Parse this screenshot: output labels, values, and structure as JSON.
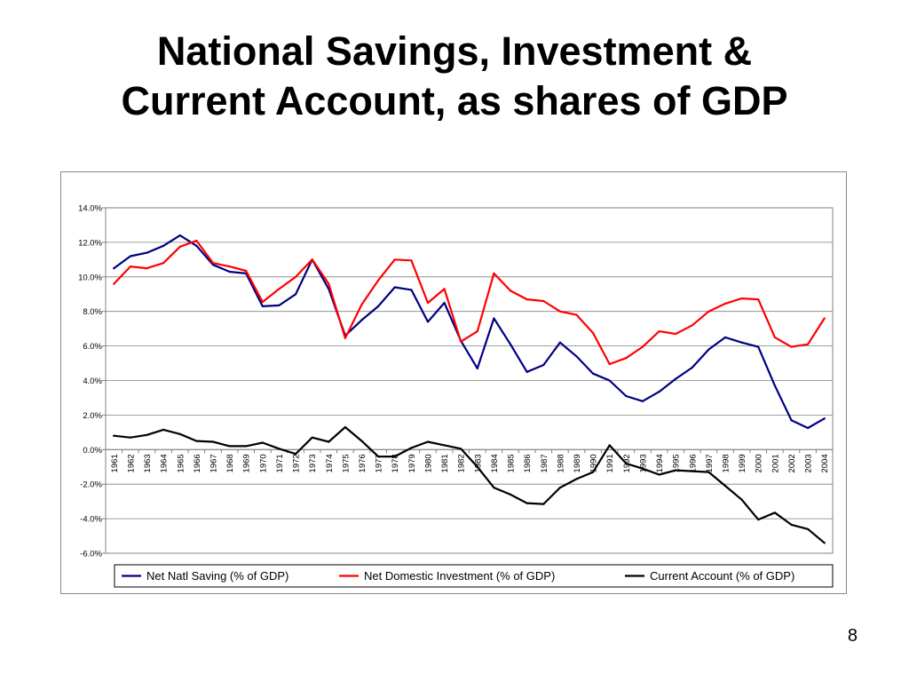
{
  "slide": {
    "title_line1": "National Savings, Investment &",
    "title_line2": "Current Account, as shares of GDP",
    "page_number": "8"
  },
  "chart_data": {
    "type": "line",
    "title": "",
    "xlabel": "",
    "ylabel": "",
    "ylim": [
      -6.0,
      14.0
    ],
    "y_ticks": [
      "14.0%",
      "12.0%",
      "10.0%",
      "8.0%",
      "6.0%",
      "4.0%",
      "2.0%",
      "0.0%",
      "-2.0%",
      "-4.0%",
      "-6.0%"
    ],
    "grid": "horizontal",
    "legend": "bottom",
    "categories": [
      "1961",
      "1962",
      "1963",
      "1964",
      "1965",
      "1966",
      "1967",
      "1968",
      "1969",
      "1970",
      "1971",
      "1972",
      "1973",
      "1974",
      "1975",
      "1976",
      "1977",
      "1978",
      "1979",
      "1980",
      "1981",
      "1982",
      "1983",
      "1984",
      "1985",
      "1986",
      "1987",
      "1988",
      "1989",
      "1990",
      "1991",
      "1992",
      "1993",
      "1994",
      "1995",
      "1996",
      "1997",
      "1998",
      "1999",
      "2000",
      "2001",
      "2002",
      "2003",
      "2004"
    ],
    "series": [
      {
        "name": "Net Natl Saving (% of GDP)",
        "color": "#000080",
        "values": [
          10.5,
          11.2,
          11.4,
          11.8,
          12.4,
          11.8,
          10.7,
          10.3,
          10.2,
          8.3,
          8.35,
          9.0,
          11.0,
          9.3,
          6.6,
          7.5,
          8.3,
          9.4,
          9.25,
          7.4,
          8.5,
          6.3,
          4.7,
          7.6,
          6.1,
          4.5,
          4.9,
          6.2,
          5.4,
          4.4,
          4.0,
          3.1,
          2.8,
          3.35,
          4.1,
          4.75,
          5.8,
          6.5,
          6.2,
          5.95,
          3.7,
          1.7,
          1.25,
          1.8
        ]
      },
      {
        "name": "Net Domestic Investment (% of GDP)",
        "color": "#ff0000",
        "values": [
          9.6,
          10.6,
          10.5,
          10.8,
          11.75,
          12.1,
          10.8,
          10.6,
          10.35,
          8.55,
          9.3,
          10.0,
          11.0,
          9.6,
          6.45,
          8.4,
          9.8,
          11.0,
          10.95,
          8.5,
          9.3,
          6.25,
          6.85,
          10.2,
          9.2,
          8.7,
          8.6,
          8.0,
          7.8,
          6.75,
          4.95,
          5.3,
          5.95,
          6.85,
          6.7,
          7.2,
          8.0,
          8.45,
          8.75,
          8.7,
          6.5,
          5.95,
          6.1,
          7.6
        ]
      },
      {
        "name": "Current Account (% of GDP)",
        "color": "#000000",
        "values": [
          0.8,
          0.7,
          0.85,
          1.15,
          0.9,
          0.5,
          0.45,
          0.2,
          0.2,
          0.4,
          0.05,
          -0.25,
          0.7,
          0.45,
          1.3,
          0.5,
          -0.4,
          -0.4,
          0.1,
          0.45,
          0.25,
          0.05,
          -1.0,
          -2.2,
          -2.6,
          -3.1,
          -3.15,
          -2.2,
          -1.7,
          -1.3,
          0.25,
          -0.8,
          -1.1,
          -1.45,
          -1.2,
          -1.25,
          -1.3,
          -2.1,
          -2.9,
          -4.05,
          -3.65,
          -4.35,
          -4.6,
          -5.4
        ]
      }
    ]
  }
}
